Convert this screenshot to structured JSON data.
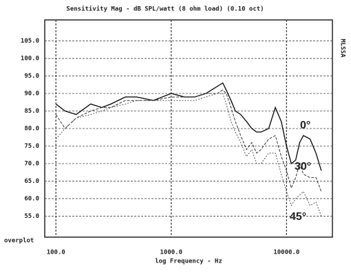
{
  "chart_data": {
    "type": "line",
    "title": "Sensitivity Mag - dB SPL/watt (8 ohm load) (0.10 oct)",
    "side_label": "MLSSA",
    "corner_label": "overplot",
    "x_label": "log Frequency - Hz",
    "x_scale": "log",
    "grid": true,
    "xlim": [
      80,
      25000
    ],
    "xticks": [
      {
        "value": 100,
        "label": "100.0"
      },
      {
        "value": 1000,
        "label": "1000.0"
      },
      {
        "value": 10000,
        "label": "10000.0"
      }
    ],
    "ylim": [
      49,
      111
    ],
    "yticks": [
      {
        "value": 105,
        "label": "105.0"
      },
      {
        "value": 100,
        "label": "100.0"
      },
      {
        "value": 95,
        "label": "95.0"
      },
      {
        "value": 90,
        "label": "90.0"
      },
      {
        "value": 85,
        "label": "85.0"
      },
      {
        "value": 80,
        "label": "80.0"
      },
      {
        "value": 75,
        "label": "75.0"
      },
      {
        "value": 70,
        "label": "70.0"
      },
      {
        "value": 65,
        "label": "65.0"
      },
      {
        "value": 60,
        "label": "60.0"
      },
      {
        "value": 55,
        "label": "55.0"
      }
    ],
    "x": [
      100,
      120,
      150,
      200,
      250,
      300,
      400,
      500,
      700,
      1000,
      1300,
      1600,
      2000,
      2500,
      2800,
      3000,
      3300,
      3600,
      4000,
      4500,
      5000,
      5500,
      6000,
      7000,
      8000,
      9000,
      10000,
      11000,
      12000,
      13000,
      14000,
      16000,
      18000,
      20000
    ],
    "series": [
      {
        "name": "0°",
        "color": "#111111",
        "values": [
          87,
          85,
          84,
          87,
          86,
          87,
          89,
          89,
          88,
          90,
          89,
          89,
          90,
          92,
          93,
          91,
          88,
          85,
          84,
          82,
          80,
          79,
          79,
          80,
          86,
          82,
          75,
          70,
          71,
          76,
          78,
          77,
          73,
          68
        ]
      },
      {
        "name": "30°",
        "color": "#333333",
        "values": [
          84,
          80,
          83,
          85,
          86,
          86,
          88,
          88,
          88,
          89,
          89,
          89,
          90,
          90,
          91,
          90,
          86,
          82,
          78,
          74,
          76,
          73,
          74,
          77,
          78,
          72,
          68,
          63,
          66,
          70,
          67,
          66,
          66,
          62
        ]
      },
      {
        "name": "45°",
        "color": "#555555",
        "values": [
          77,
          80,
          83,
          84,
          85,
          86,
          87,
          88,
          88,
          88,
          88,
          88,
          89,
          90,
          90,
          87,
          82,
          79,
          76,
          72,
          74,
          70,
          70,
          73,
          73,
          67,
          62,
          58,
          60,
          61,
          62,
          58,
          59,
          55
        ]
      }
    ]
  }
}
